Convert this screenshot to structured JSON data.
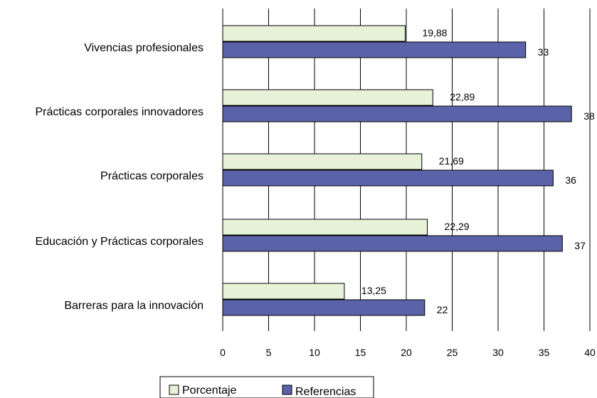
{
  "chart_data": {
    "type": "bar",
    "orientation": "horizontal",
    "categories": [
      "Vivencias profesionales",
      "Prácticas corporales innovadores",
      "Prácticas corporales",
      "Educación y Prácticas corporales",
      "Barreras para la innovación"
    ],
    "series": [
      {
        "name": "Porcentaje",
        "values": [
          19.88,
          22.89,
          21.69,
          22.29,
          13.25
        ],
        "labels": [
          "19,88",
          "22,89",
          "21,69",
          "22,29",
          "13,25"
        ],
        "color": "#e8f2d8"
      },
      {
        "name": "Referencias",
        "values": [
          33,
          38,
          36,
          37,
          22
        ],
        "labels": [
          "33",
          "38",
          "36",
          "37",
          "22"
        ],
        "color": "#5a63a8"
      }
    ],
    "x_ticks": [
      "0",
      "5",
      "10",
      "15",
      "20",
      "25",
      "30",
      "35",
      "40"
    ],
    "xlim": [
      0,
      40
    ],
    "grid": "vertical",
    "legend": {
      "position": "bottom-left",
      "entries": [
        "Porcentaje",
        "Referencias"
      ]
    }
  }
}
